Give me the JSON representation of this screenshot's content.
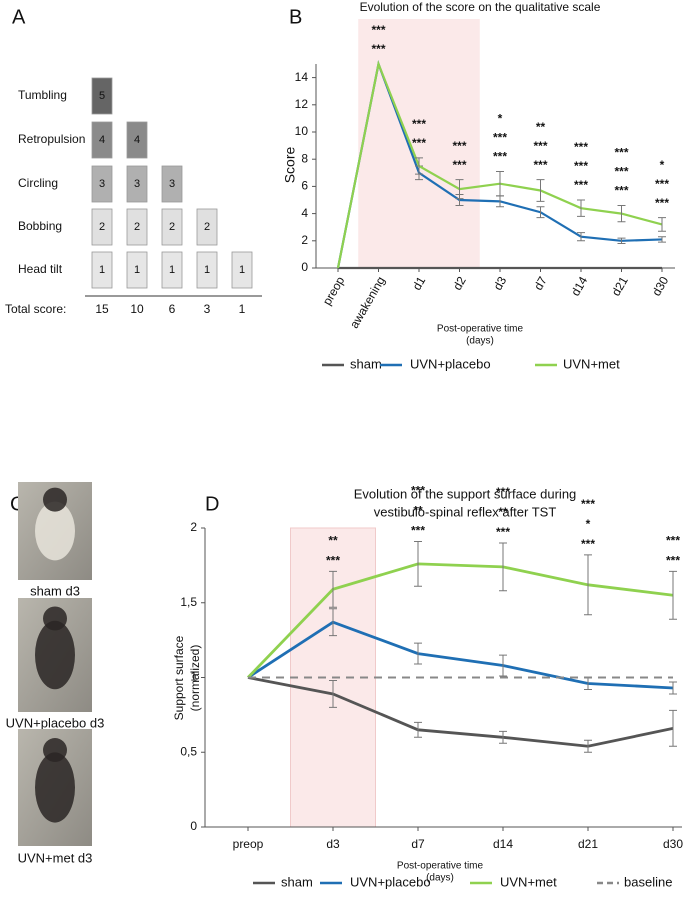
{
  "panel_labels": [
    "A",
    "B",
    "C",
    "D"
  ],
  "scale_diagram": {
    "levels": [
      "Tumbling",
      "Retropulsion",
      "Circling",
      "Bobbing",
      "Head tilt"
    ],
    "total_label": "Total score:",
    "columns": [
      {
        "blocks": [
          1,
          2,
          3,
          4,
          5
        ],
        "total": 15
      },
      {
        "blocks": [
          1,
          2,
          3,
          4
        ],
        "total": 10
      },
      {
        "blocks": [
          1,
          2,
          3
        ],
        "total": 6
      },
      {
        "blocks": [
          1,
          2
        ],
        "total": 3
      },
      {
        "blocks": [
          1
        ],
        "total": 1
      }
    ]
  },
  "photos": [
    {
      "caption": "sham d3"
    },
    {
      "caption": "UVN+placebo d3"
    },
    {
      "caption": "UVN+met d3"
    }
  ],
  "chart_data": [
    {
      "type": "line",
      "title": [
        "Evolution of the score on the qualitative scale"
      ],
      "xlabel": [
        "Post-operative time",
        "(days)"
      ],
      "ylabel": [
        "Score"
      ],
      "categories": [
        "preop",
        "awakening",
        "d1",
        "d2",
        "d3",
        "d7",
        "d14",
        "d21",
        "d30"
      ],
      "highlight": {
        "from": "awakening",
        "to": "d2"
      },
      "ylim": [
        0,
        15
      ],
      "yticks": [
        0,
        2,
        4,
        6,
        8,
        10,
        12,
        14
      ],
      "series": [
        {
          "name": "sham",
          "color": "#555555",
          "values": [
            0,
            0,
            0,
            0,
            0,
            0,
            0,
            0,
            0
          ]
        },
        {
          "name": "UVN+placebo",
          "color": "#1f6fb4",
          "values": [
            0,
            15,
            7.0,
            5.0,
            4.9,
            4.1,
            2.3,
            2.0,
            2.1
          ],
          "errors": [
            null,
            null,
            0.5,
            0.4,
            0.4,
            0.4,
            0.3,
            0.2,
            0.2
          ]
        },
        {
          "name": "UVN+met",
          "color": "#8fd14f",
          "values": [
            0,
            15,
            7.5,
            5.8,
            6.2,
            5.7,
            4.4,
            4.0,
            3.2
          ],
          "errors": [
            null,
            null,
            0.6,
            0.7,
            0.9,
            0.8,
            0.6,
            0.6,
            0.5
          ]
        }
      ],
      "significance": [
        {
          "color": "#8fd14f",
          "labels": [
            null,
            "***",
            "***",
            "***",
            "***",
            "***",
            "***",
            "***",
            "***"
          ]
        },
        {
          "color": "#1f6fb4",
          "labels": [
            null,
            "***",
            "***",
            "***",
            "***",
            "***",
            "***",
            "***",
            "***"
          ]
        },
        {
          "color": "#c00000",
          "labels": [
            null,
            null,
            null,
            null,
            "*",
            "**",
            "***",
            "***",
            "*"
          ]
        }
      ]
    },
    {
      "type": "line",
      "title": [
        "Evolution of the support surface during",
        "vestibulo-spinal reflex after TST"
      ],
      "xlabel": [
        "Post-operative time",
        "(days)"
      ],
      "ylabel": [
        "Support surface",
        "(normalized)"
      ],
      "categories": [
        "preop",
        "d3",
        "d7",
        "d14",
        "d21",
        "d30"
      ],
      "highlight": {
        "from": "d3",
        "to": "d3"
      },
      "ylim": [
        0,
        2
      ],
      "yticks": [
        0,
        {
          "value": 0.5,
          "label": "0,5"
        },
        1,
        {
          "value": 1.5,
          "label": "1,5"
        },
        2
      ],
      "series": [
        {
          "name": "sham",
          "color": "#555555",
          "values": [
            1,
            0.89,
            0.65,
            0.6,
            0.54,
            0.66
          ],
          "errors": [
            null,
            0.09,
            0.05,
            0.04,
            0.04,
            0.12
          ]
        },
        {
          "name": "UVN+placebo",
          "color": "#1f6fb4",
          "values": [
            1,
            1.37,
            1.16,
            1.08,
            0.96,
            0.93
          ],
          "errors": [
            null,
            0.09,
            0.07,
            0.07,
            0.04,
            0.04
          ]
        },
        {
          "name": "UVN+met",
          "color": "#8fd14f",
          "values": [
            1,
            1.59,
            1.76,
            1.74,
            1.62,
            1.55
          ],
          "errors": [
            null,
            0.12,
            0.15,
            0.16,
            0.2,
            0.16
          ]
        },
        {
          "name": "baseline",
          "color": "#888888",
          "dashed": true,
          "values": [
            1,
            1,
            1,
            1,
            1,
            1
          ]
        }
      ],
      "significance": [
        {
          "color": "#8fd14f",
          "labels": [
            null,
            "***",
            "***",
            "***",
            "***",
            "***"
          ]
        },
        {
          "color": "#1f6fb4",
          "labels": [
            null,
            "**",
            "**",
            "**",
            "*",
            null
          ]
        },
        {
          "color": "#c00000",
          "labels": [
            null,
            null,
            "***",
            "***",
            "***",
            "***"
          ]
        }
      ]
    }
  ]
}
